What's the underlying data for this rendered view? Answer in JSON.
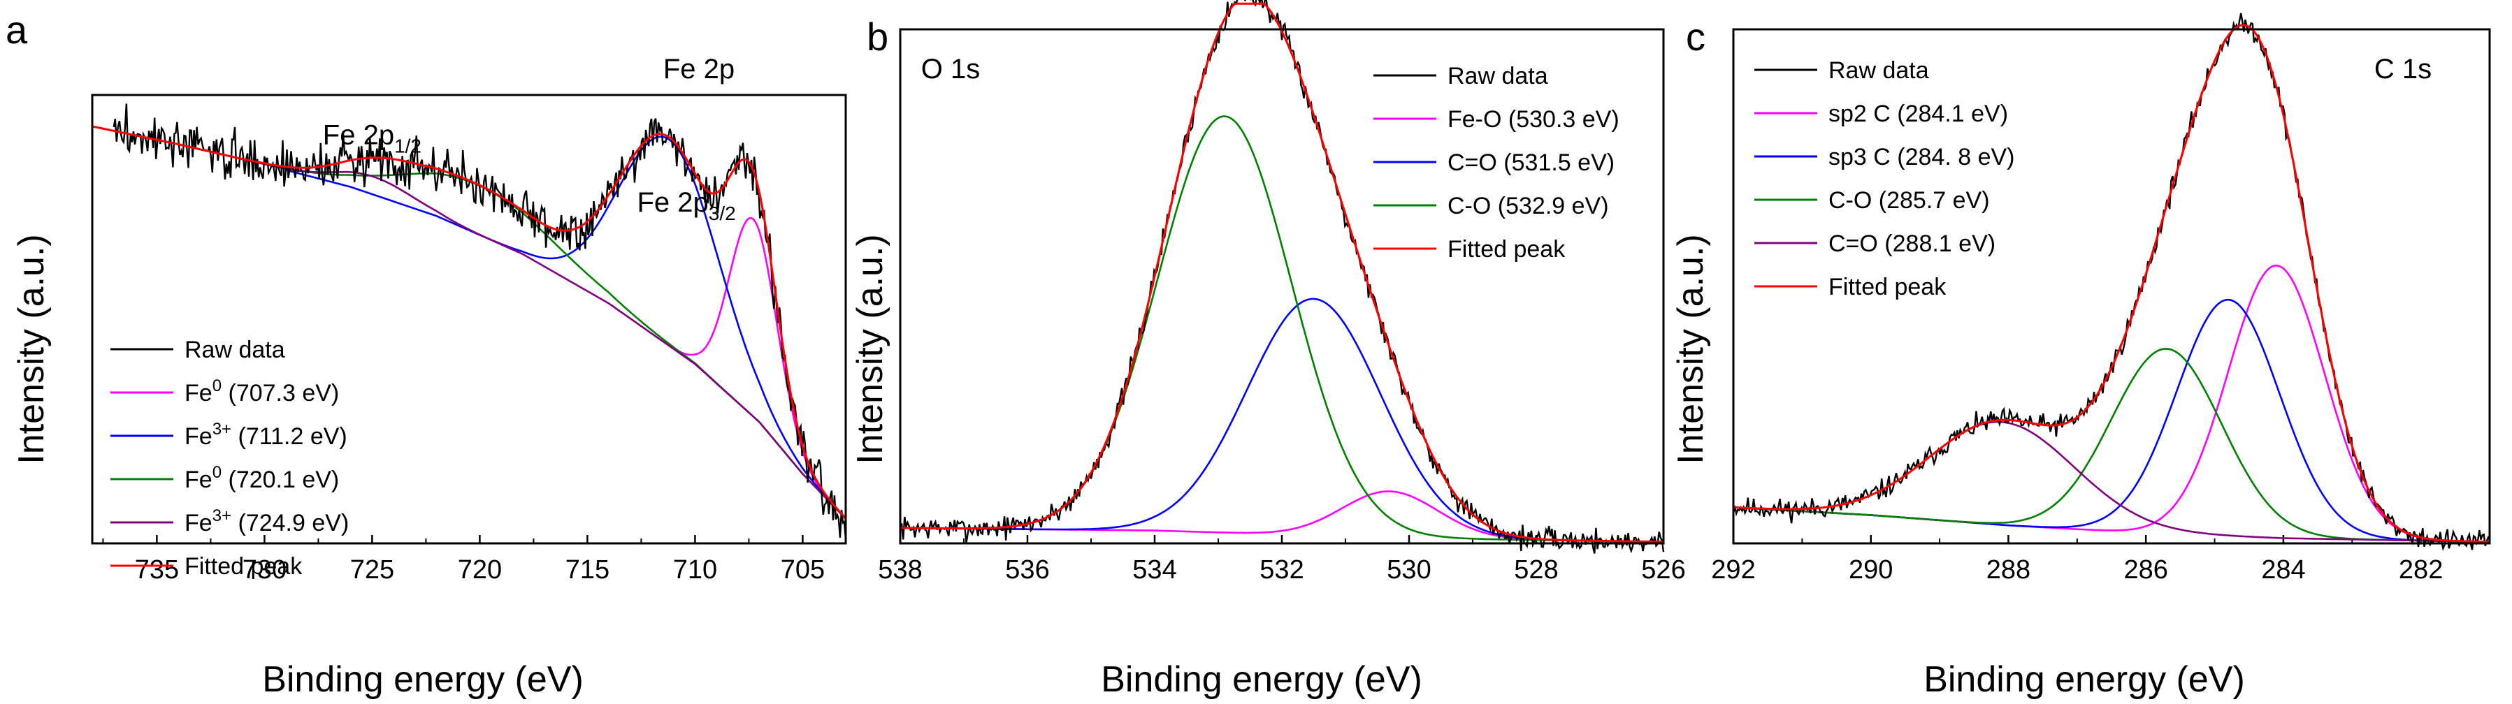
{
  "chart_data": [
    {
      "panel": "a",
      "type": "line",
      "title": "Fe 2p",
      "xlabel": "Binding energy (eV)",
      "ylabel": "Intensity (a.u.)",
      "xlim": [
        738,
        703
      ],
      "ylim": [
        0,
        100
      ],
      "xticks": [
        735,
        730,
        725,
        720,
        715,
        710,
        705
      ],
      "xtick_labels": [
        "735",
        "730",
        "725",
        "720",
        "715",
        "710",
        "705"
      ],
      "annotations": [
        {
          "base": "Fe 2p",
          "sub": "1/2",
          "x": 725,
          "y": 89
        },
        {
          "base": "Fe 2p",
          "sub": "3/2",
          "x": 710.4,
          "y": 74
        }
      ],
      "legend": [
        {
          "label": "Raw data",
          "color": "#000000"
        },
        {
          "label": "Fe",
          "sup": "0",
          "tail": " (707.3 eV)",
          "color": "#ff00ff"
        },
        {
          "label": "Fe",
          "sup": "3+",
          "tail": " (711.2 eV)",
          "color": "#0000ff"
        },
        {
          "label": "Fe",
          "sup": "0",
          "tail": " (720.1 eV)",
          "color": "#008000"
        },
        {
          "label": "Fe",
          "sup": "3+",
          "tail": " (724.9 eV)",
          "color": "#800080"
        },
        {
          "label": "Fitted peak",
          "color": "#ff0000"
        }
      ],
      "background": [
        [
          738,
          93
        ],
        [
          734,
          89
        ],
        [
          730,
          84.5
        ],
        [
          726,
          79.5
        ],
        [
          722,
          73
        ],
        [
          718,
          64.5
        ],
        [
          714,
          53.5
        ],
        [
          710,
          40
        ],
        [
          707,
          27
        ],
        [
          705,
          15.5
        ],
        [
          703,
          5.5
        ]
      ],
      "components": [
        {
          "name": "Fe0 (707.3 eV)",
          "center": 707.3,
          "amp": 44,
          "width": 1.1,
          "color": "#ff00ff",
          "from": 712,
          "to": 703
        },
        {
          "name": "Fe3+ (711.2 eV)",
          "center": 711.2,
          "amp": 46,
          "width": 2.3,
          "color": "#0000ff",
          "from": 729,
          "to": 703
        },
        {
          "name": "Fe0 (720.1 eV)",
          "center": 720.1,
          "amp": 11,
          "width": 3.5,
          "color": "#008000",
          "from": 729,
          "to": 703
        },
        {
          "name": "Fe3+ (724.9 eV)",
          "center": 724.9,
          "amp": 4,
          "width": 1.8,
          "color": "#800080",
          "from": 738,
          "to": 703
        }
      ],
      "fitted": {
        "color": "#ff0000",
        "from": 738,
        "to": 703
      },
      "raw": {
        "color": "#000000",
        "from": 737,
        "to": 703,
        "noise": 2.6,
        "seed": 3
      }
    },
    {
      "panel": "b",
      "type": "line",
      "title": "O 1s",
      "xlabel": "Binding energy (eV)",
      "ylabel": "Intensity (a.u.)",
      "xlim": [
        538,
        526
      ],
      "ylim": [
        0,
        100
      ],
      "xticks": [
        538,
        536,
        534,
        532,
        530,
        528,
        526
      ],
      "xtick_labels": [
        "538",
        "536",
        "534",
        "532",
        "530",
        "528",
        "526"
      ],
      "annotations": [],
      "legend": [
        {
          "label": "Raw data",
          "color": "#000000"
        },
        {
          "label": "Fe-O (530.3 eV)",
          "color": "#ff00ff"
        },
        {
          "label": "C=O (531.5 eV)",
          "color": "#0000ff"
        },
        {
          "label": "C-O (532.9 eV)",
          "color": "#008000"
        },
        {
          "label": "Fitted peak",
          "color": "#ff0000"
        }
      ],
      "background": [
        [
          538,
          3
        ],
        [
          534,
          2.5
        ],
        [
          530,
          1
        ],
        [
          526,
          0.3
        ]
      ],
      "components": [
        {
          "name": "Fe-O (530.3 eV)",
          "center": 530.3,
          "amp": 9,
          "width": 0.75,
          "color": "#ff00ff",
          "from": 538,
          "to": 526
        },
        {
          "name": "C=O (531.5 eV)",
          "center": 531.5,
          "amp": 46,
          "width": 1.05,
          "color": "#0000ff",
          "from": 538,
          "to": 526
        },
        {
          "name": "C-O (532.9 eV)",
          "center": 532.9,
          "amp": 81,
          "width": 1.05,
          "color": "#008000",
          "from": 538,
          "to": 526
        }
      ],
      "fitted": {
        "color": "#ff0000",
        "from": 538,
        "to": 526
      },
      "raw": {
        "color": "#000000",
        "from": 538,
        "to": 526,
        "noise": 1.1,
        "seed": 7
      }
    },
    {
      "panel": "c",
      "type": "line",
      "title": "C 1s",
      "xlabel": "Binding energy (eV)",
      "ylabel": "Intensity (a.u.)",
      "xlim": [
        292,
        281
      ],
      "ylim": [
        0,
        100
      ],
      "xticks": [
        292,
        290,
        288,
        286,
        284,
        282
      ],
      "xtick_labels": [
        "292",
        "290",
        "288",
        "286",
        "284",
        "282"
      ],
      "annotations": [],
      "legend": [
        {
          "label": "Raw data",
          "color": "#000000"
        },
        {
          "label": "sp2 C (284.1 eV)",
          "color": "#ff00ff"
        },
        {
          "label": "sp3 C (284. 8 eV)",
          "color": "#0000ff"
        },
        {
          "label": "C-O (285.7 eV)",
          "color": "#008000"
        },
        {
          "label": "C=O (288.1 eV)",
          "color": "#800080"
        },
        {
          "label": "Fitted peak",
          "color": "#ff0000"
        }
      ],
      "background": [
        [
          292,
          7
        ],
        [
          290,
          5.5
        ],
        [
          288,
          3.5
        ],
        [
          286,
          2
        ],
        [
          284,
          1
        ],
        [
          281,
          0.3
        ]
      ],
      "components": [
        {
          "name": "sp2 C (284.1 eV)",
          "center": 284.1,
          "amp": 53,
          "width": 0.7,
          "color": "#ff00ff",
          "from": 292,
          "to": 281
        },
        {
          "name": "sp3 C (284. 8 eV)",
          "center": 284.8,
          "amp": 46,
          "width": 0.75,
          "color": "#0000ff",
          "from": 292,
          "to": 281
        },
        {
          "name": "C-O (285.7 eV)",
          "center": 285.7,
          "amp": 36,
          "width": 0.8,
          "color": "#008000",
          "from": 292,
          "to": 281
        },
        {
          "name": "C=O (288.1 eV)",
          "center": 288.1,
          "amp": 20,
          "width": 1.05,
          "color": "#800080",
          "from": 292,
          "to": 281
        }
      ],
      "fitted": {
        "color": "#ff0000",
        "from": 292,
        "to": 281
      },
      "raw": {
        "color": "#000000",
        "from": 292,
        "to": 281,
        "noise": 1.0,
        "seed": 11
      }
    }
  ]
}
